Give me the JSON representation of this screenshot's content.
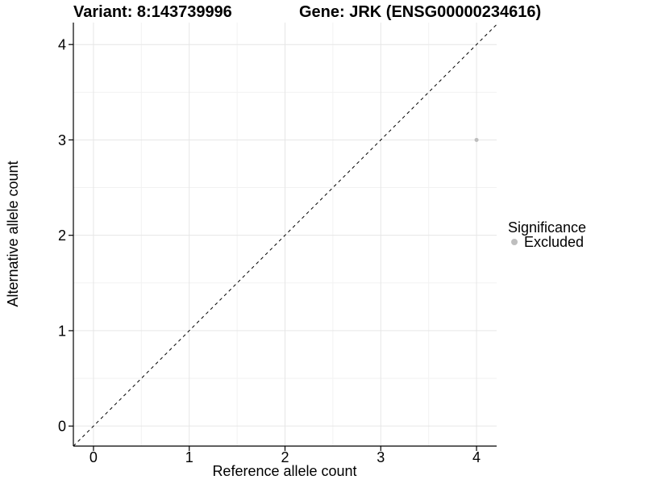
{
  "chart_data": {
    "type": "scatter",
    "title_variant": "Variant: 8:143739996",
    "title_gene": "Gene: JRK (ENSG00000234616)",
    "xlabel": "Reference allele count",
    "ylabel": "Alternative allele count",
    "xlim": [
      -0.21,
      4.21
    ],
    "ylim": [
      -0.21,
      4.23
    ],
    "xticks": [
      0,
      1,
      2,
      3,
      4
    ],
    "yticks": [
      0,
      1,
      2,
      3,
      4
    ],
    "minor_ticks": [
      0.5,
      1.5,
      2.5,
      3.5
    ],
    "grid": "major+minor",
    "points": [
      {
        "x": 4,
        "y": 3,
        "significance": "Excluded"
      }
    ],
    "identity_line": {
      "style": "dashed",
      "from": -0.21,
      "to": 4.21
    },
    "legend": {
      "position": "right",
      "title": "Significance",
      "items": [
        {
          "label": "Excluded",
          "color": "#bebebe"
        }
      ]
    }
  },
  "colors": {
    "background": "#ffffff",
    "point": "#bebebe",
    "grid_major": "#e6e6e6",
    "grid_minor": "#f2f2f2",
    "axis_line": "#000000",
    "identity_line": "#000000",
    "text": "#000000"
  }
}
